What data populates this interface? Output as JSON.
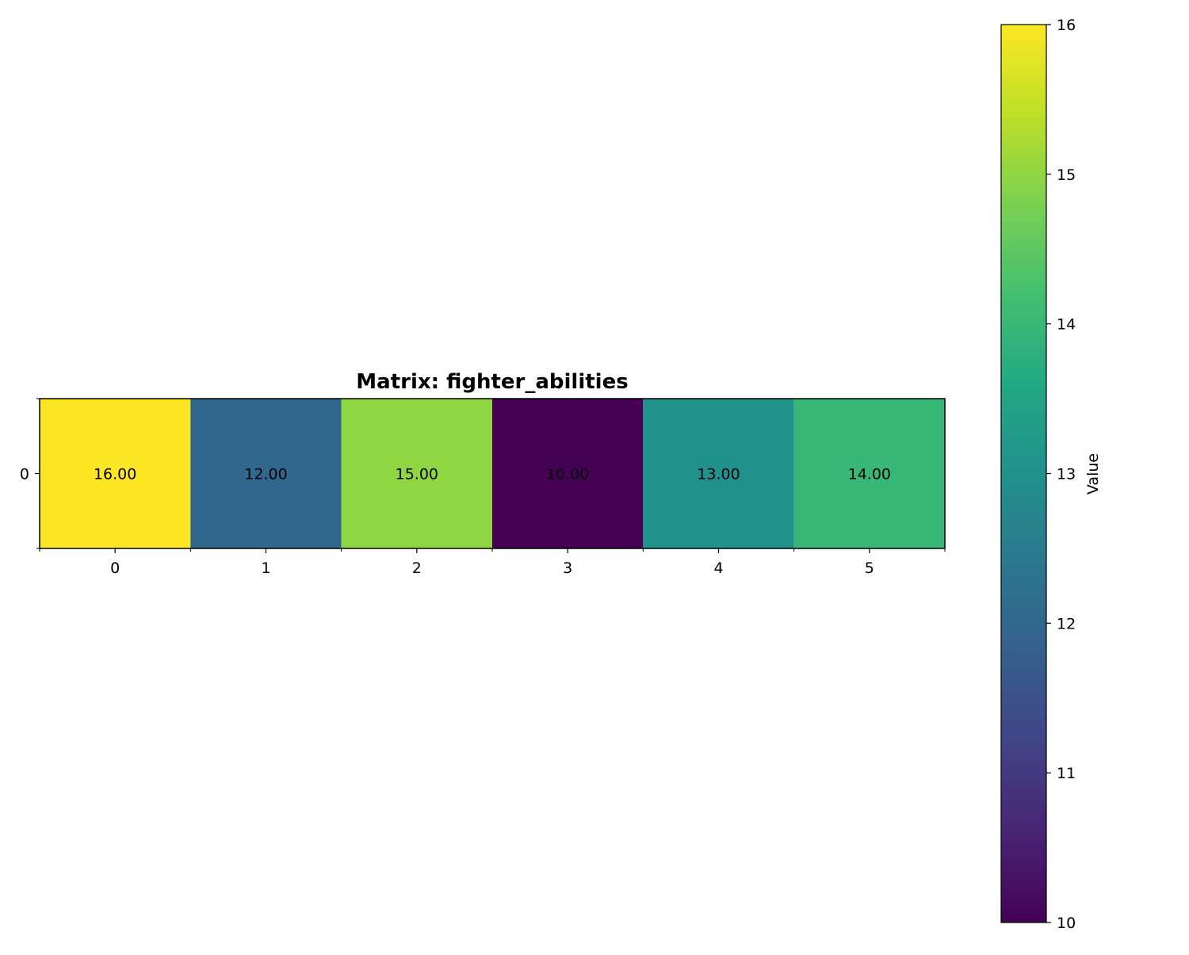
{
  "chart_data": {
    "type": "heatmap",
    "title": "Matrix: fighter_abilities",
    "rows": [
      "0"
    ],
    "columns": [
      "0",
      "1",
      "2",
      "3",
      "4",
      "5"
    ],
    "values": [
      [
        16,
        12,
        15,
        10,
        13,
        14
      ]
    ],
    "cell_labels": [
      [
        "16.00",
        "12.00",
        "15.00",
        "10.00",
        "13.00",
        "14.00"
      ]
    ],
    "colormap": "viridis",
    "color_range": [
      10,
      16
    ],
    "colorbar": {
      "label": "Value",
      "ticks": [
        "10",
        "11",
        "12",
        "13",
        "14",
        "15",
        "16"
      ]
    },
    "grid": false
  }
}
